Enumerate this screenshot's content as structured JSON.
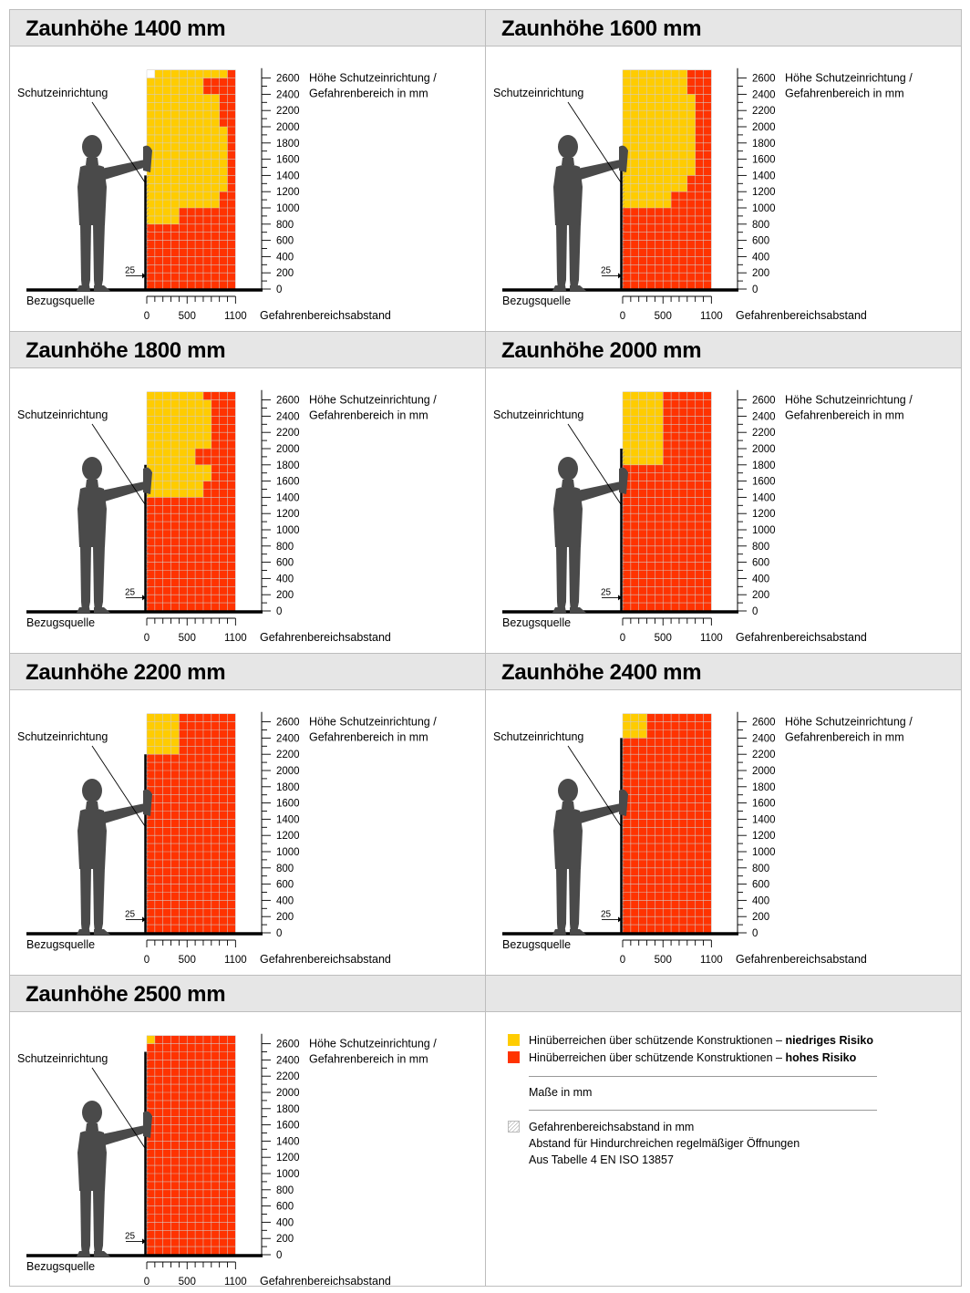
{
  "colors": {
    "high_risk": "#ff3300",
    "low_risk": "#ffcc00",
    "grid": "#cfcfcf",
    "figure": "#4a4a4a",
    "header_bg": "#e6e6e6"
  },
  "common_labels": {
    "barrier": "Schutzeinrichtung",
    "reference": "Bezugsquelle",
    "y_axis_label_line1": "Höhe Schutzeinrichtung /",
    "y_axis_label_line2": "Gefahrenbereich in mm",
    "x_axis_label": "Gefahrenbereichsabstand",
    "gap_label": "25"
  },
  "y_ticks": [
    0,
    200,
    400,
    600,
    800,
    1000,
    1200,
    1400,
    1600,
    1800,
    2000,
    2200,
    2400,
    2600
  ],
  "x_ticks": [
    "0",
    "500",
    "1100"
  ],
  "diagrams": [
    {
      "title": "Zaunhöhe 1400 mm",
      "fence_height_mm": 1400,
      "yellow_right_mm": [
        0,
        0,
        0,
        0,
        400,
        900,
        1000,
        1000,
        1000,
        1000,
        900,
        900,
        700,
        1000,
        1100
      ],
      "red_right_mm": [
        1100,
        1100,
        1100,
        1100,
        1100,
        1100,
        1100,
        1100,
        1100,
        1100,
        1100,
        1100,
        1100,
        1100,
        1100
      ],
      "white_gap_mm": [
        0,
        0,
        0,
        0,
        0,
        0,
        0,
        0,
        0,
        0,
        0,
        0,
        0,
        100,
        0
      ]
    },
    {
      "title": "Zaunhöhe 1600 mm",
      "fence_height_mm": 1600,
      "yellow_right_mm": [
        0,
        0,
        0,
        0,
        0,
        600,
        800,
        900,
        900,
        900,
        900,
        900,
        800,
        800,
        600
      ],
      "red_right_mm": [
        1100,
        1100,
        1100,
        1100,
        1100,
        1100,
        1100,
        1100,
        1100,
        1100,
        1100,
        1100,
        1100,
        1100,
        1100
      ],
      "white_gap_mm": [
        0,
        0,
        0,
        0,
        0,
        0,
        0,
        0,
        0,
        0,
        0,
        0,
        0,
        0,
        0
      ]
    },
    {
      "title": "Zaunhöhe 1800 mm",
      "fence_height_mm": 1800,
      "yellow_right_mm": [
        0,
        0,
        0,
        0,
        0,
        0,
        0,
        700,
        800,
        600,
        800,
        800,
        800,
        700,
        600
      ],
      "red_right_mm": [
        1100,
        1100,
        1100,
        1100,
        1100,
        1100,
        1100,
        1100,
        1100,
        1100,
        1100,
        1100,
        1100,
        1100,
        1100
      ],
      "white_gap_mm": [
        0,
        0,
        0,
        0,
        0,
        0,
        0,
        0,
        0,
        0,
        0,
        0,
        0,
        0,
        0
      ]
    },
    {
      "title": "Zaunhöhe 2000 mm",
      "fence_height_mm": 2000,
      "yellow_right_mm": [
        0,
        0,
        0,
        0,
        0,
        0,
        0,
        0,
        0,
        500,
        500,
        500,
        500,
        500,
        500
      ],
      "red_right_mm": [
        1100,
        1100,
        1100,
        1100,
        1100,
        1100,
        1100,
        1100,
        1100,
        1100,
        1100,
        1100,
        1100,
        1100,
        1100
      ],
      "white_gap_mm": [
        0,
        0,
        0,
        0,
        0,
        0,
        0,
        0,
        0,
        0,
        0,
        0,
        0,
        0,
        0
      ]
    },
    {
      "title": "Zaunhöhe 2200 mm",
      "fence_height_mm": 2200,
      "yellow_right_mm": [
        0,
        0,
        0,
        0,
        0,
        0,
        0,
        0,
        0,
        0,
        0,
        400,
        400,
        400,
        400
      ],
      "red_right_mm": [
        1100,
        1100,
        1100,
        1100,
        1100,
        1100,
        1100,
        1100,
        1100,
        1100,
        1100,
        1100,
        1100,
        1100,
        1100
      ],
      "white_gap_mm": [
        0,
        0,
        0,
        0,
        0,
        0,
        0,
        0,
        0,
        0,
        0,
        0,
        0,
        0,
        0
      ]
    },
    {
      "title": "Zaunhöhe 2400 mm",
      "fence_height_mm": 2400,
      "yellow_right_mm": [
        0,
        0,
        0,
        0,
        0,
        0,
        0,
        0,
        0,
        0,
        0,
        0,
        300,
        300,
        300
      ],
      "red_right_mm": [
        1100,
        1100,
        1100,
        1100,
        1100,
        1100,
        1100,
        1100,
        1100,
        1100,
        1100,
        1100,
        1100,
        1100,
        1100
      ],
      "white_gap_mm": [
        0,
        0,
        0,
        0,
        0,
        0,
        0,
        0,
        0,
        0,
        0,
        0,
        0,
        0,
        0
      ]
    },
    {
      "title": "Zaunhöhe 2500 mm",
      "fence_height_mm": 2500,
      "yellow_right_mm": [
        0,
        0,
        0,
        0,
        0,
        0,
        0,
        0,
        0,
        0,
        0,
        0,
        0,
        100,
        100
      ],
      "red_right_mm": [
        1100,
        1100,
        1100,
        1100,
        1100,
        1100,
        1100,
        1100,
        1100,
        1100,
        1100,
        1100,
        1100,
        1100,
        1100
      ],
      "white_gap_mm": [
        0,
        0,
        0,
        0,
        0,
        0,
        0,
        0,
        0,
        0,
        0,
        0,
        0,
        0,
        0
      ]
    }
  ],
  "legend": {
    "low_text": "Hinüberreichen über schützende Konstruktionen – ",
    "low_bold": "niedriges Risiko",
    "high_text": "Hinüberreichen über schützende Konstruktionen – ",
    "high_bold": "hohes Risiko",
    "units": "Maße in mm",
    "hatch_line1": "Gefahrenbereichsabstand in mm",
    "hatch_line2": "Abstand für Hindurchreichen regelmäßiger Öffnungen",
    "hatch_line3": "Aus Tabelle 4 EN ISO 13857"
  }
}
